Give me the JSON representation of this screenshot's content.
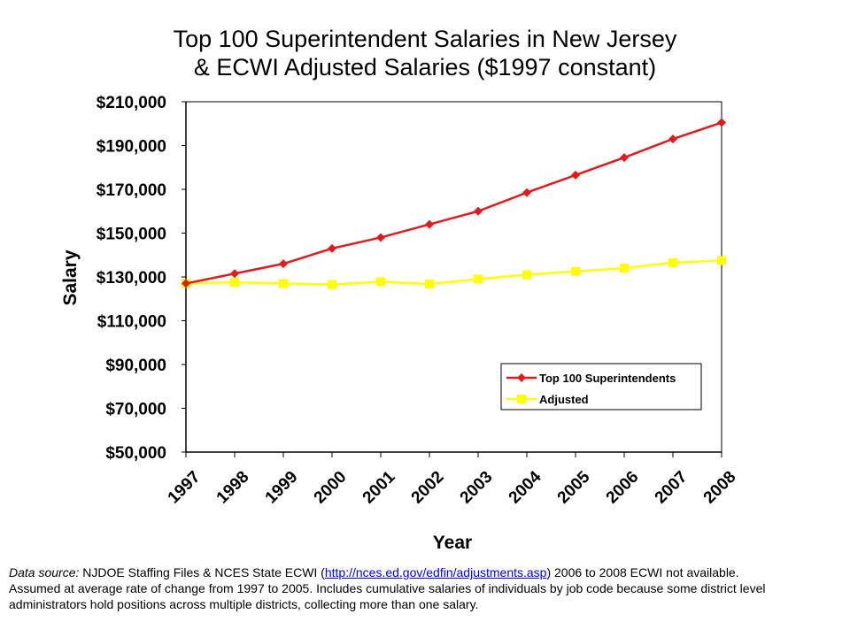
{
  "chart_data": {
    "type": "line",
    "title_line1": "Top 100 Superintendent Salaries in New Jersey",
    "title_line2": "& ECWI Adjusted Salaries ($1997 constant)",
    "xlabel": "Year",
    "ylabel": "Salary",
    "categories": [
      "1997",
      "1998",
      "1999",
      "2000",
      "2001",
      "2002",
      "2003",
      "2004",
      "2005",
      "2006",
      "2007",
      "2008"
    ],
    "yticks": [
      50000,
      70000,
      90000,
      110000,
      130000,
      150000,
      170000,
      190000,
      210000
    ],
    "ytick_labels": [
      "$50,000",
      "$70,000",
      "$90,000",
      "$110,000",
      "$130,000",
      "$150,000",
      "$170,000",
      "$190,000",
      "$210,000"
    ],
    "ylim": [
      50000,
      210000
    ],
    "grid": false,
    "legend_position": "bottom-right",
    "series": [
      {
        "name": "Top 100 Superintendents",
        "color": "#e31a1c",
        "marker": "diamond",
        "values": [
          127000,
          131500,
          136000,
          143000,
          148000,
          154000,
          160000,
          168500,
          176500,
          184500,
          193000,
          200500
        ]
      },
      {
        "name": "Adjusted",
        "color": "#ffff00",
        "marker": "square",
        "values": [
          127000,
          127500,
          127000,
          126500,
          127800,
          126700,
          129000,
          131000,
          132500,
          134000,
          136500,
          137500
        ]
      }
    ]
  },
  "source_note": {
    "prefix": "Data source:",
    "text_before_link": " NJDOE Staffing Files & NCES State ECWI (",
    "link_text": "http://nces.ed.gov/edfin/adjustments.asp",
    "text_after_link": ") 2006 to 2008 ECWI not available. Assumed at average rate of change from 1997 to 2005. Includes cumulative salaries of individuals by job code because some district level administrators hold positions across multiple districts, collecting more than one salary."
  },
  "colors": {
    "axis": "#000000",
    "background": "#ffffff"
  }
}
